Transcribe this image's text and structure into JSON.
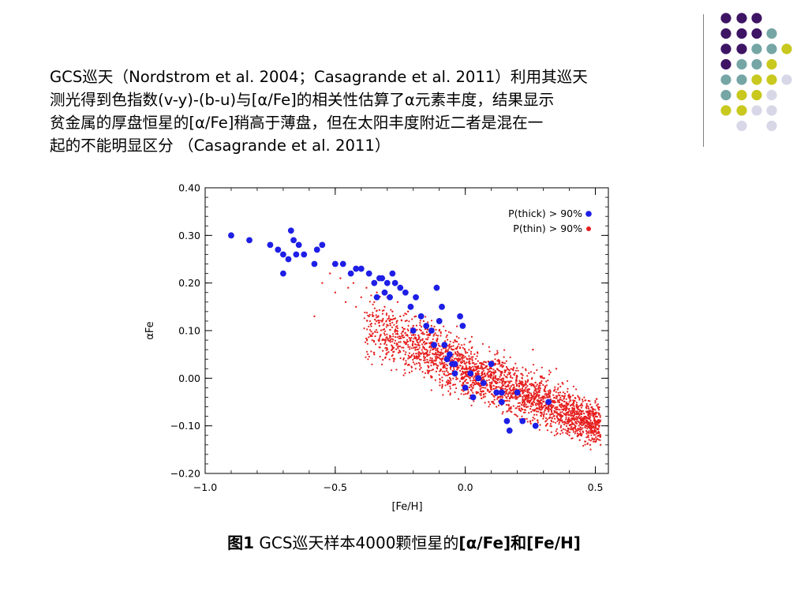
{
  "slide": {
    "paragraph_lines": [
      "GCS巡天（Nordstrom et al. 2004；Casagrande et al. 2011）利用其巡天",
      "测光得到色指数(v-y)-(b-u)与[α/Fe]的相关性估算了α元素丰度，结果显示",
      "贫金属的厚盘恒星的[α/Fe]稍高于薄盘，但在太阳丰度附近二者是混在一",
      "起的不能明显区分 （Casagrande et al. 2011）"
    ],
    "caption": {
      "prefix_bold": "图1",
      "middle": " GCS巡天样本4000颗恒星的",
      "alpha_bold": "[α/Fe]",
      "and_bold": "和",
      "feh_bold": "[Fe/H]"
    },
    "decor_colors": {
      "purple": "#3e1464",
      "teal": "#76a5a5",
      "yellow": "#c8c81e",
      "lavender": "#d7d7e8",
      "divider": "#808080"
    }
  },
  "chart_data": {
    "type": "scatter",
    "title": "",
    "xlabel": "[Fe/H]",
    "ylabel": "αFe",
    "xlim": [
      -1.0,
      0.55
    ],
    "ylim": [
      -0.2,
      0.4
    ],
    "xticks": [
      -1.0,
      -0.5,
      0.0,
      0.5
    ],
    "xtick_labels": [
      "−1.0",
      "−0.5",
      "0.0",
      "0.5"
    ],
    "yticks": [
      0.4,
      0.3,
      0.2,
      0.1,
      0.0,
      -0.1,
      -0.2
    ],
    "ytick_labels": [
      "0.40",
      "0.30",
      "0.20",
      "0.10",
      "0.00",
      "−0.10",
      "−0.20"
    ],
    "legend_position": "top-right",
    "series": [
      {
        "name": "P(thick) > 90%",
        "color": "#1e1ee6",
        "marker": "large-dot",
        "points": [
          [
            -0.9,
            0.3
          ],
          [
            -0.83,
            0.29
          ],
          [
            -0.75,
            0.28
          ],
          [
            -0.72,
            0.27
          ],
          [
            -0.7,
            0.26
          ],
          [
            -0.68,
            0.25
          ],
          [
            -0.67,
            0.31
          ],
          [
            -0.66,
            0.29
          ],
          [
            -0.65,
            0.26
          ],
          [
            -0.64,
            0.28
          ],
          [
            -0.62,
            0.26
          ],
          [
            -0.58,
            0.24
          ],
          [
            -0.57,
            0.27
          ],
          [
            -0.55,
            0.28
          ],
          [
            -0.7,
            0.22
          ],
          [
            -0.5,
            0.24
          ],
          [
            -0.47,
            0.24
          ],
          [
            -0.44,
            0.22
          ],
          [
            -0.42,
            0.23
          ],
          [
            -0.4,
            0.23
          ],
          [
            -0.37,
            0.22
          ],
          [
            -0.35,
            0.2
          ],
          [
            -0.33,
            0.21
          ],
          [
            -0.32,
            0.21
          ],
          [
            -0.3,
            0.2
          ],
          [
            -0.28,
            0.22
          ],
          [
            -0.27,
            0.2
          ],
          [
            -0.34,
            0.17
          ],
          [
            -0.31,
            0.18
          ],
          [
            -0.29,
            0.17
          ],
          [
            -0.25,
            0.19
          ],
          [
            -0.23,
            0.18
          ],
          [
            -0.21,
            0.15
          ],
          [
            -0.19,
            0.17
          ],
          [
            -0.17,
            0.13
          ],
          [
            -0.15,
            0.11
          ],
          [
            -0.13,
            0.1
          ],
          [
            -0.11,
            0.19
          ],
          [
            -0.1,
            0.12
          ],
          [
            -0.09,
            0.15
          ],
          [
            -0.08,
            0.07
          ],
          [
            -0.07,
            0.04
          ],
          [
            -0.06,
            0.05
          ],
          [
            -0.05,
            0.03
          ],
          [
            -0.04,
            0.03
          ],
          [
            -0.04,
            0.01
          ],
          [
            -0.02,
            0.13
          ],
          [
            -0.01,
            0.11
          ],
          [
            0.0,
            -0.02
          ],
          [
            0.02,
            0.01
          ],
          [
            0.05,
            0.0
          ],
          [
            0.07,
            -0.01
          ],
          [
            0.1,
            0.03
          ],
          [
            0.12,
            -0.03
          ],
          [
            0.14,
            -0.03
          ],
          [
            0.16,
            -0.09
          ],
          [
            0.17,
            -0.11
          ],
          [
            0.2,
            -0.03
          ],
          [
            0.22,
            -0.09
          ],
          [
            0.27,
            -0.1
          ],
          [
            0.32,
            -0.05
          ],
          [
            0.14,
            -0.05
          ],
          [
            -0.2,
            0.1
          ],
          [
            -0.12,
            0.07
          ],
          [
            0.03,
            -0.04
          ]
        ]
      },
      {
        "name": "P(thin) > 90%",
        "color": "#e61e1e",
        "marker": "small-dot",
        "relation": "dense band following αFe ≈ 0.02 − 0.23·[Fe/H], spanning [Fe/H] ≈ −0.55 to +0.52",
        "points": [
          [
            -0.55,
            0.2
          ],
          [
            -0.52,
            0.22
          ],
          [
            -0.5,
            0.18
          ],
          [
            -0.48,
            0.21
          ],
          [
            -0.46,
            0.16
          ],
          [
            -0.45,
            0.19
          ],
          [
            -0.43,
            0.2
          ],
          [
            -0.42,
            0.15
          ],
          [
            -0.4,
            0.17
          ],
          [
            -0.38,
            0.19
          ],
          [
            -0.37,
            0.13
          ],
          [
            -0.35,
            0.16
          ],
          [
            -0.34,
            0.18
          ],
          [
            -0.33,
            0.11
          ],
          [
            -0.31,
            0.15
          ],
          [
            -0.3,
            0.17
          ],
          [
            -0.29,
            0.12
          ],
          [
            -0.28,
            0.14
          ],
          [
            -0.27,
            0.1
          ],
          [
            -0.26,
            0.16
          ],
          [
            -0.25,
            0.13
          ],
          [
            -0.24,
            0.09
          ],
          [
            -0.23,
            0.12
          ],
          [
            -0.22,
            0.14
          ],
          [
            -0.21,
            0.08
          ],
          [
            -0.2,
            0.11
          ],
          [
            -0.19,
            0.13
          ],
          [
            -0.18,
            0.07
          ],
          [
            -0.17,
            0.1
          ],
          [
            -0.16,
            0.12
          ],
          [
            -0.15,
            0.06
          ],
          [
            -0.14,
            0.09
          ],
          [
            -0.13,
            0.11
          ],
          [
            -0.12,
            0.05
          ],
          [
            -0.11,
            0.08
          ],
          [
            -0.1,
            0.1
          ],
          [
            -0.09,
            0.04
          ],
          [
            -0.08,
            0.07
          ],
          [
            -0.07,
            0.09
          ],
          [
            -0.06,
            0.03
          ],
          [
            -0.05,
            0.06
          ],
          [
            -0.04,
            0.08
          ],
          [
            -0.03,
            0.02
          ],
          [
            -0.02,
            0.05
          ],
          [
            -0.01,
            0.0
          ],
          [
            0.0,
            0.03
          ],
          [
            0.01,
            -0.01
          ],
          [
            0.02,
            0.02
          ],
          [
            0.03,
            -0.02
          ],
          [
            0.04,
            0.01
          ],
          [
            0.05,
            -0.03
          ],
          [
            0.06,
            0.0
          ],
          [
            0.07,
            -0.04
          ],
          [
            0.08,
            -0.01
          ],
          [
            0.09,
            -0.05
          ],
          [
            0.1,
            -0.02
          ],
          [
            0.12,
            -0.06
          ],
          [
            0.14,
            -0.03
          ],
          [
            0.16,
            -0.07
          ],
          [
            0.18,
            -0.04
          ],
          [
            0.2,
            -0.08
          ],
          [
            0.22,
            -0.05
          ],
          [
            0.25,
            -0.09
          ],
          [
            0.28,
            -0.07
          ],
          [
            0.31,
            -0.1
          ],
          [
            0.34,
            -0.08
          ],
          [
            0.37,
            -0.11
          ],
          [
            0.4,
            -0.12
          ],
          [
            0.44,
            -0.13
          ],
          [
            0.48,
            -0.14
          ],
          [
            0.52,
            -0.14
          ],
          [
            -0.58,
            0.13
          ],
          [
            0.26,
            0.06
          ],
          [
            0.35,
            0.02
          ],
          [
            -0.35,
            0.05
          ]
        ]
      }
    ]
  }
}
